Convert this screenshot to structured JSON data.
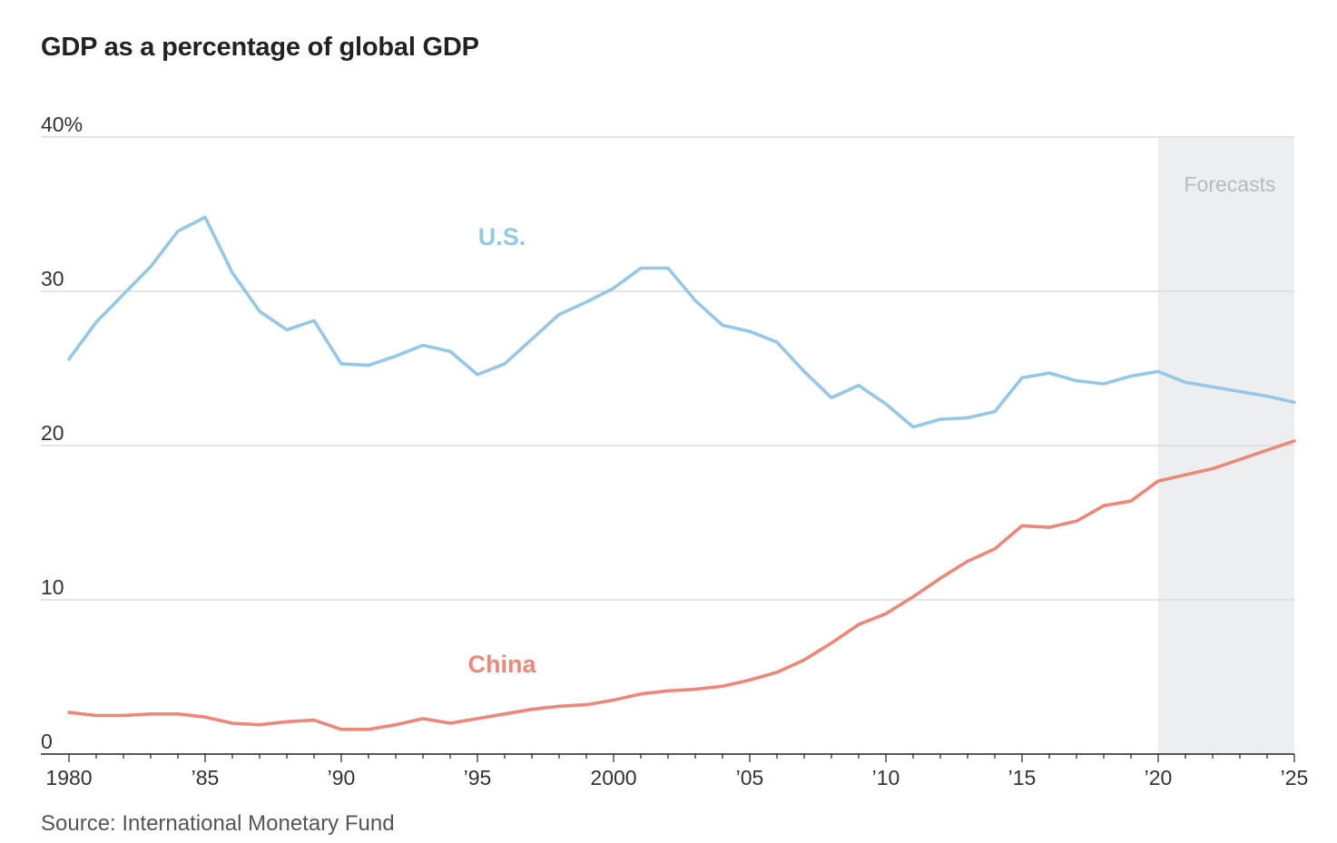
{
  "chart_data": {
    "type": "line",
    "title": "GDP as a percentage of global GDP",
    "source": "Source:  International Monetary Fund",
    "xlabel": "",
    "ylabel": "",
    "xlim": [
      1980,
      2025
    ],
    "ylim": [
      0,
      40
    ],
    "grid": true,
    "y_ticks": [
      {
        "value": 0,
        "label": "0"
      },
      {
        "value": 10,
        "label": "10"
      },
      {
        "value": 20,
        "label": "20"
      },
      {
        "value": 30,
        "label": "30"
      },
      {
        "value": 40,
        "label": "40%"
      }
    ],
    "x_ticks": [
      {
        "value": 1980,
        "label": "1980"
      },
      {
        "value": 1985,
        "label": "’85"
      },
      {
        "value": 1990,
        "label": "’90"
      },
      {
        "value": 1995,
        "label": "’95"
      },
      {
        "value": 2000,
        "label": "2000"
      },
      {
        "value": 2005,
        "label": "’05"
      },
      {
        "value": 2010,
        "label": "’10"
      },
      {
        "value": 2015,
        "label": "’15"
      },
      {
        "value": 2020,
        "label": "’20"
      },
      {
        "value": 2025,
        "label": "’25"
      }
    ],
    "forecast": {
      "label": "Forecasts",
      "start": 2020,
      "end": 2025,
      "color": "#eceef0"
    },
    "series": [
      {
        "name": "U.S.",
        "color": "#95c8e6",
        "label_at": {
          "x": 1995.9,
          "y": 33.0
        },
        "x": [
          1980,
          1981,
          1982,
          1983,
          1984,
          1985,
          1986,
          1987,
          1988,
          1989,
          1990,
          1991,
          1992,
          1993,
          1994,
          1995,
          1996,
          1997,
          1998,
          1999,
          2000,
          2001,
          2002,
          2003,
          2004,
          2005,
          2006,
          2007,
          2008,
          2009,
          2010,
          2011,
          2012,
          2013,
          2014,
          2015,
          2016,
          2017,
          2018,
          2019,
          2020,
          2021,
          2022,
          2023,
          2024,
          2025
        ],
        "values": [
          25.6,
          28.0,
          29.8,
          31.6,
          33.9,
          34.8,
          31.2,
          28.7,
          27.5,
          28.1,
          25.3,
          25.2,
          25.8,
          26.5,
          26.1,
          24.6,
          25.3,
          26.9,
          28.5,
          29.3,
          30.2,
          31.5,
          31.5,
          29.4,
          27.8,
          27.4,
          26.7,
          24.8,
          23.1,
          23.9,
          22.7,
          21.2,
          21.7,
          21.8,
          22.2,
          24.4,
          24.7,
          24.2,
          24.0,
          24.5,
          24.8,
          24.1,
          23.8,
          23.5,
          23.2,
          22.8
        ]
      },
      {
        "name": "China",
        "color": "#ec8878",
        "label_at": {
          "x": 1995.9,
          "y": 5.3
        },
        "x": [
          1980,
          1981,
          1982,
          1983,
          1984,
          1985,
          1986,
          1987,
          1988,
          1989,
          1990,
          1991,
          1992,
          1993,
          1994,
          1995,
          1996,
          1997,
          1998,
          1999,
          2000,
          2001,
          2002,
          2003,
          2004,
          2005,
          2006,
          2007,
          2008,
          2009,
          2010,
          2011,
          2012,
          2013,
          2014,
          2015,
          2016,
          2017,
          2018,
          2019,
          2020,
          2021,
          2022,
          2023,
          2024,
          2025
        ],
        "values": [
          2.7,
          2.5,
          2.5,
          2.6,
          2.6,
          2.4,
          2.0,
          1.9,
          2.1,
          2.2,
          1.6,
          1.6,
          1.9,
          2.3,
          2.0,
          2.3,
          2.6,
          2.9,
          3.1,
          3.2,
          3.5,
          3.9,
          4.1,
          4.2,
          4.4,
          4.8,
          5.3,
          6.1,
          7.2,
          8.4,
          9.1,
          10.2,
          11.4,
          12.5,
          13.3,
          14.8,
          14.7,
          15.1,
          16.1,
          16.4,
          17.7,
          18.1,
          18.5,
          19.1,
          19.7,
          20.3
        ]
      }
    ]
  }
}
